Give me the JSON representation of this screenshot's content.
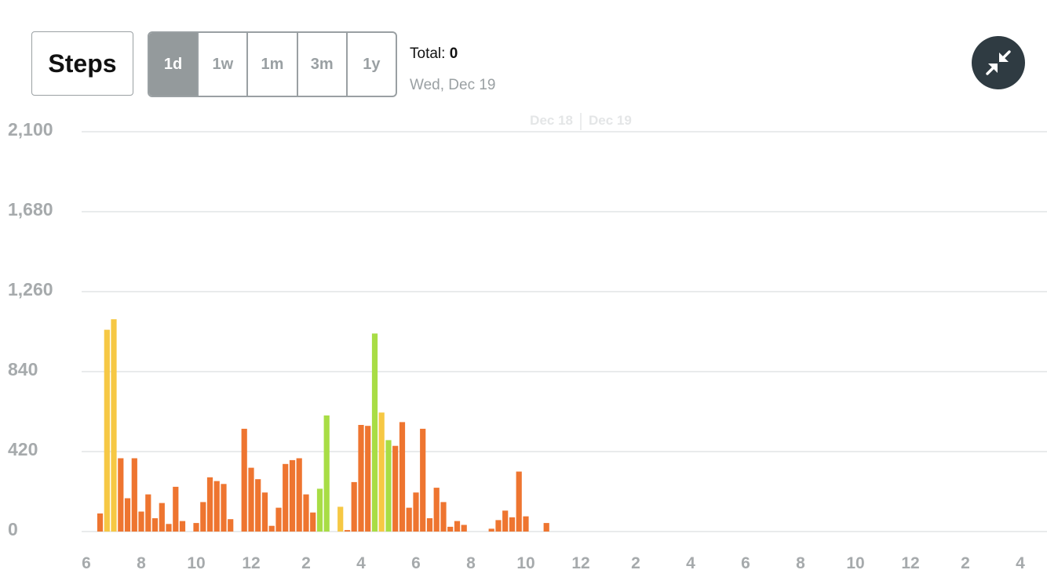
{
  "header": {
    "metric_label": "Steps",
    "ranges": [
      "1d",
      "1w",
      "1m",
      "3m",
      "1y"
    ],
    "active_range": "1d",
    "total_label": "Total:",
    "total_value": "0",
    "date": "Wed, Dec 19",
    "collapse_icon": "collapse-arrows-icon"
  },
  "chart_data": {
    "type": "bar",
    "ylim": [
      0,
      2100
    ],
    "yticks": [
      "2,100",
      "1,680",
      "1,260",
      "840",
      "420",
      "0"
    ],
    "ytick_values": [
      2100,
      1680,
      1260,
      840,
      420,
      0
    ],
    "xticks": [
      "6",
      "8",
      "10",
      "12",
      "2",
      "4",
      "6",
      "8",
      "10",
      "12",
      "2",
      "4",
      "6",
      "8",
      "10",
      "12",
      "2",
      "4"
    ],
    "day_markers": [
      "Dec 18",
      "Dec 19"
    ],
    "grid": true,
    "colors": {
      "low": "#ee7530",
      "mid": "#f6c844",
      "high": "#a8dd45",
      "grid": "#e9ebec"
    },
    "bars": [
      {
        "x": 0.5,
        "v": 95,
        "c": "low"
      },
      {
        "x": 0.75,
        "v": 1060,
        "c": "mid"
      },
      {
        "x": 1.0,
        "v": 1115,
        "c": "mid"
      },
      {
        "x": 1.25,
        "v": 385,
        "c": "low"
      },
      {
        "x": 1.5,
        "v": 175,
        "c": "low"
      },
      {
        "x": 1.75,
        "v": 385,
        "c": "low"
      },
      {
        "x": 2.0,
        "v": 105,
        "c": "low"
      },
      {
        "x": 2.25,
        "v": 195,
        "c": "low"
      },
      {
        "x": 2.5,
        "v": 70,
        "c": "low"
      },
      {
        "x": 2.75,
        "v": 150,
        "c": "low"
      },
      {
        "x": 3.0,
        "v": 40,
        "c": "low"
      },
      {
        "x": 3.25,
        "v": 235,
        "c": "low"
      },
      {
        "x": 3.5,
        "v": 55,
        "c": "low"
      },
      {
        "x": 4.0,
        "v": 45,
        "c": "low"
      },
      {
        "x": 4.25,
        "v": 155,
        "c": "low"
      },
      {
        "x": 4.5,
        "v": 285,
        "c": "low"
      },
      {
        "x": 4.75,
        "v": 265,
        "c": "low"
      },
      {
        "x": 5.0,
        "v": 250,
        "c": "low"
      },
      {
        "x": 5.25,
        "v": 65,
        "c": "low"
      },
      {
        "x": 5.75,
        "v": 540,
        "c": "low"
      },
      {
        "x": 6.0,
        "v": 335,
        "c": "low"
      },
      {
        "x": 6.25,
        "v": 275,
        "c": "low"
      },
      {
        "x": 6.5,
        "v": 205,
        "c": "low"
      },
      {
        "x": 6.75,
        "v": 30,
        "c": "low"
      },
      {
        "x": 7.0,
        "v": 125,
        "c": "low"
      },
      {
        "x": 7.25,
        "v": 355,
        "c": "low"
      },
      {
        "x": 7.5,
        "v": 375,
        "c": "low"
      },
      {
        "x": 7.75,
        "v": 385,
        "c": "low"
      },
      {
        "x": 8.0,
        "v": 195,
        "c": "low"
      },
      {
        "x": 8.25,
        "v": 100,
        "c": "low"
      },
      {
        "x": 8.5,
        "v": 225,
        "c": "high"
      },
      {
        "x": 8.75,
        "v": 610,
        "c": "high"
      },
      {
        "x": 9.25,
        "v": 130,
        "c": "mid"
      },
      {
        "x": 9.5,
        "v": 8,
        "c": "low"
      },
      {
        "x": 9.75,
        "v": 260,
        "c": "low"
      },
      {
        "x": 10.0,
        "v": 560,
        "c": "low"
      },
      {
        "x": 10.25,
        "v": 555,
        "c": "low"
      },
      {
        "x": 10.5,
        "v": 1040,
        "c": "high"
      },
      {
        "x": 10.75,
        "v": 625,
        "c": "mid"
      },
      {
        "x": 11.0,
        "v": 480,
        "c": "high"
      },
      {
        "x": 11.25,
        "v": 450,
        "c": "low"
      },
      {
        "x": 11.5,
        "v": 575,
        "c": "low"
      },
      {
        "x": 11.75,
        "v": 125,
        "c": "low"
      },
      {
        "x": 12.0,
        "v": 205,
        "c": "low"
      },
      {
        "x": 12.25,
        "v": 540,
        "c": "low"
      },
      {
        "x": 12.5,
        "v": 70,
        "c": "low"
      },
      {
        "x": 12.75,
        "v": 230,
        "c": "low"
      },
      {
        "x": 13.0,
        "v": 155,
        "c": "low"
      },
      {
        "x": 13.25,
        "v": 25,
        "c": "low"
      },
      {
        "x": 13.5,
        "v": 55,
        "c": "low"
      },
      {
        "x": 13.75,
        "v": 35,
        "c": "low"
      },
      {
        "x": 14.75,
        "v": 15,
        "c": "low"
      },
      {
        "x": 15.0,
        "v": 60,
        "c": "low"
      },
      {
        "x": 15.25,
        "v": 110,
        "c": "low"
      },
      {
        "x": 15.5,
        "v": 75,
        "c": "low"
      },
      {
        "x": 15.75,
        "v": 315,
        "c": "low"
      },
      {
        "x": 16.0,
        "v": 80,
        "c": "low"
      },
      {
        "x": 16.75,
        "v": 45,
        "c": "low"
      }
    ]
  }
}
